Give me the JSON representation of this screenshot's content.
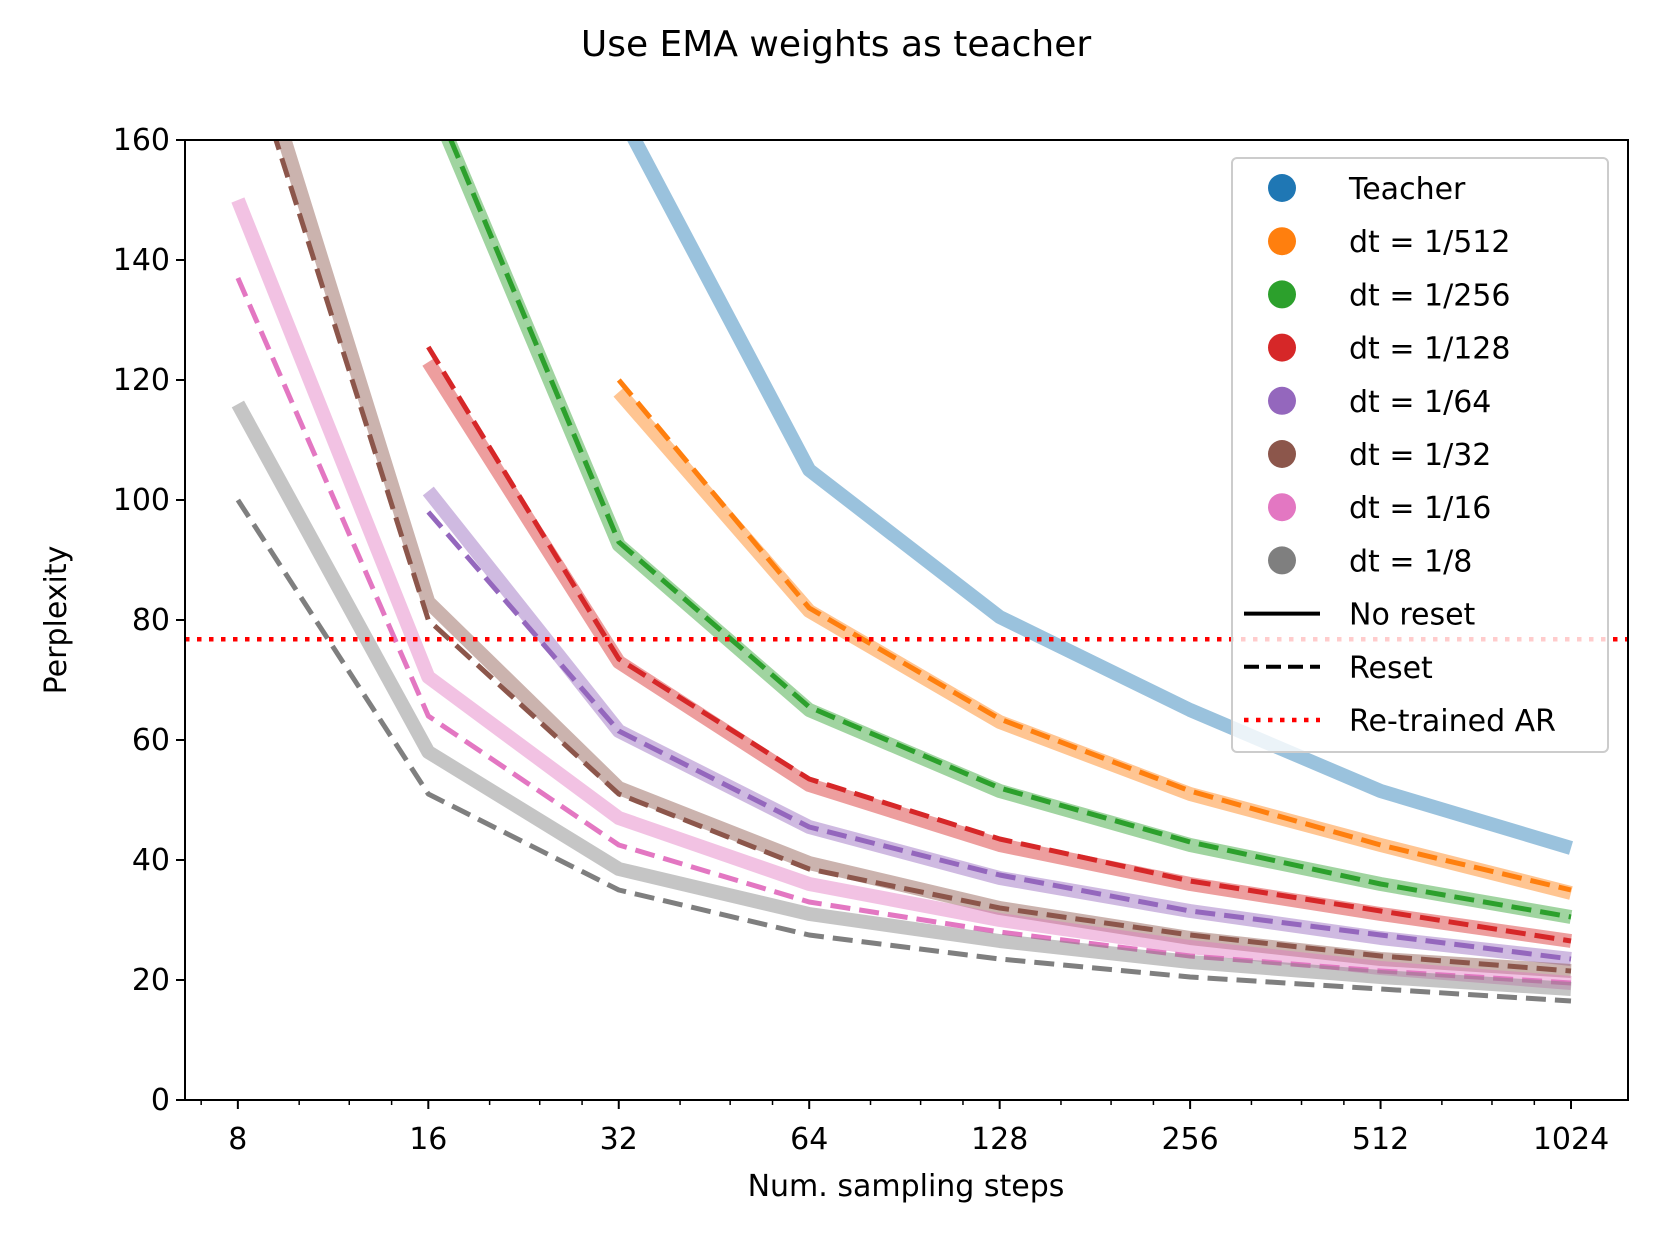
{
  "chart_data": {
    "type": "line",
    "title": "Use EMA weights as teacher",
    "xlabel": "Num. sampling steps",
    "ylabel": "Perplexity",
    "x_scale": "log2",
    "x": [
      8,
      16,
      32,
      64,
      128,
      256,
      512,
      1024
    ],
    "x_ticks": [
      "8",
      "16",
      "32",
      "64",
      "128",
      "256",
      "512",
      "1024"
    ],
    "xlim": [
      6.6,
      1260
    ],
    "ylim": [
      0,
      160
    ],
    "y_ticks": [
      "0",
      "20",
      "40",
      "60",
      "80",
      "100",
      "120",
      "140",
      "160"
    ],
    "grid": false,
    "legend_position": "top-right",
    "series": [
      {
        "name": "Teacher",
        "color": "#1f77b4",
        "style": "no_reset",
        "values": [
          null,
          null,
          165,
          105,
          80.5,
          65,
          51.5,
          42
        ]
      },
      {
        "name": "dt = 1/512",
        "color": "#ff7f0e",
        "style": "no_reset",
        "values": [
          null,
          null,
          118,
          81.5,
          63,
          51,
          42.5,
          34.5
        ]
      },
      {
        "name": "dt = 1/512",
        "color": "#ff7f0e",
        "style": "reset",
        "values": [
          null,
          null,
          120,
          82,
          63.5,
          51.5,
          42.5,
          35
        ]
      },
      {
        "name": "dt = 1/256",
        "color": "#2ca02c",
        "style": "no_reset",
        "values": [
          null,
          168,
          92.5,
          65,
          51.5,
          42.5,
          36,
          30.5
        ]
      },
      {
        "name": "dt = 1/256",
        "color": "#2ca02c",
        "style": "reset",
        "values": [
          null,
          169,
          93,
          65.5,
          52,
          43,
          36,
          30.5
        ]
      },
      {
        "name": "dt = 1/128",
        "color": "#d62728",
        "style": "no_reset",
        "values": [
          null,
          123,
          73,
          52.5,
          42.5,
          36,
          31,
          26.5
        ]
      },
      {
        "name": "dt = 1/128",
        "color": "#d62728",
        "style": "reset",
        "values": [
          null,
          125.5,
          73.5,
          53.5,
          43.5,
          36.5,
          31.5,
          26.5
        ]
      },
      {
        "name": "dt = 1/64",
        "color": "#9467bd",
        "style": "no_reset",
        "values": [
          null,
          101.5,
          61.5,
          45.5,
          37,
          31.5,
          27,
          23.5
        ]
      },
      {
        "name": "dt = 1/64",
        "color": "#9467bd",
        "style": "reset",
        "values": [
          null,
          98,
          61.5,
          45.5,
          37.5,
          31.5,
          27.5,
          23.5
        ]
      },
      {
        "name": "dt = 1/32",
        "color": "#8c564b",
        "style": "no_reset",
        "values": [
          185,
          83,
          52,
          39.5,
          32,
          27,
          23.5,
          21.5
        ]
      },
      {
        "name": "dt = 1/32",
        "color": "#8c564b",
        "style": "reset",
        "values": [
          180,
          80,
          51,
          38.5,
          32,
          27.5,
          24,
          21.5
        ]
      },
      {
        "name": "dt = 1/16",
        "color": "#e377c2",
        "style": "no_reset",
        "values": [
          150,
          70.5,
          47,
          36,
          30,
          25.5,
          22,
          19.5
        ]
      },
      {
        "name": "dt = 1/16",
        "color": "#e377c2",
        "style": "reset",
        "values": [
          137,
          64,
          42.5,
          33,
          28,
          24,
          21.5,
          19.5
        ]
      },
      {
        "name": "dt = 1/8",
        "color": "#7f7f7f",
        "style": "no_reset",
        "values": [
          116,
          58,
          38.5,
          31,
          26.5,
          23,
          20.5,
          18.5
        ]
      },
      {
        "name": "dt = 1/8",
        "color": "#7f7f7f",
        "style": "reset",
        "values": [
          100,
          51,
          35,
          27.5,
          23.5,
          20.5,
          18.5,
          16.5
        ]
      }
    ],
    "reference_line": {
      "name": "Re-trained AR",
      "y": 76.8,
      "color": "#ff0000",
      "style": "dotted"
    },
    "legend": [
      {
        "kind": "marker",
        "label": "Teacher",
        "color": "#1f77b4"
      },
      {
        "kind": "marker",
        "label": "dt = 1/512",
        "color": "#ff7f0e"
      },
      {
        "kind": "marker",
        "label": "dt = 1/256",
        "color": "#2ca02c"
      },
      {
        "kind": "marker",
        "label": "dt = 1/128",
        "color": "#d62728"
      },
      {
        "kind": "marker",
        "label": "dt = 1/64",
        "color": "#9467bd"
      },
      {
        "kind": "marker",
        "label": "dt = 1/32",
        "color": "#8c564b"
      },
      {
        "kind": "marker",
        "label": "dt = 1/16",
        "color": "#e377c2"
      },
      {
        "kind": "marker",
        "label": "dt = 1/8",
        "color": "#7f7f7f"
      },
      {
        "kind": "solid",
        "label": "No reset",
        "color": "#000000"
      },
      {
        "kind": "dashed",
        "label": "Reset",
        "color": "#000000"
      },
      {
        "kind": "dotted",
        "label": "Re-trained AR",
        "color": "#ff0000"
      }
    ]
  }
}
